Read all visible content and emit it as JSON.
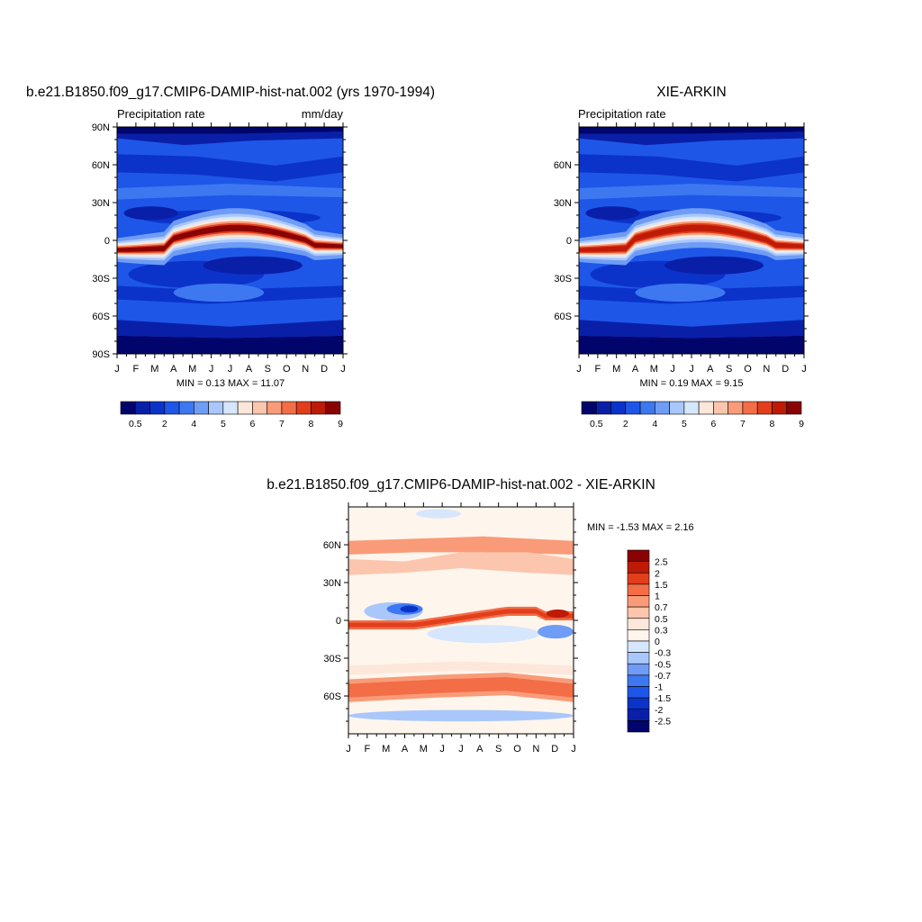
{
  "months": [
    "J",
    "F",
    "M",
    "A",
    "M",
    "J",
    "J",
    "A",
    "S",
    "O",
    "N",
    "D",
    "J"
  ],
  "colors": {
    "abs": [
      "#00046b",
      "#0a1fa8",
      "#0b33c9",
      "#1e56e8",
      "#3d78f0",
      "#6f9cf5",
      "#a9c7fb",
      "#d6e6fd",
      "#fde7da",
      "#fcc5ad",
      "#f99b78",
      "#f36d46",
      "#e23e1c",
      "#bd1a08",
      "#8a0303"
    ],
    "diff": [
      "#8a0303",
      "#bd1a08",
      "#e23e1c",
      "#f36d46",
      "#f99b78",
      "#fcc5ad",
      "#fde7da",
      "#fef5ec",
      "#d6e6fd",
      "#a9c7fb",
      "#6f9cf5",
      "#3d78f0",
      "#1e56e8",
      "#0b33c9",
      "#0a1fa8",
      "#00046b"
    ]
  },
  "chart_data": [
    {
      "type": "heatmap",
      "id": "model",
      "title": "b.e21.B1850.f09_g17.CMIP6-DAMIP-hist-nat.002 (yrs 1970-1994)",
      "left_label": "Precipitation rate",
      "right_label": "mm/day",
      "x": [
        "J",
        "F",
        "M",
        "A",
        "M",
        "J",
        "J",
        "A",
        "S",
        "O",
        "N",
        "D",
        "J"
      ],
      "y_ticks": [
        "90N",
        "60N",
        "30N",
        "0",
        "30S",
        "60S",
        "90S"
      ],
      "min_label": "MIN =   0.13 MAX =  11.07",
      "min": 0.13,
      "max": 11.07,
      "colorbar_labels": [
        "0.5",
        "2",
        "4",
        "5",
        "6",
        "7",
        "8",
        "9"
      ]
    },
    {
      "type": "heatmap",
      "id": "obs",
      "title": "XIE-ARKIN",
      "left_label": "Precipitation rate",
      "x": [
        "J",
        "F",
        "M",
        "A",
        "M",
        "J",
        "J",
        "A",
        "S",
        "O",
        "N",
        "D",
        "J"
      ],
      "y_ticks": [
        "60N",
        "30N",
        "0",
        "30S",
        "60S"
      ],
      "min_label": "MIN =   0.19 MAX =   9.15",
      "min": 0.19,
      "max": 9.15,
      "colorbar_labels": [
        "0.5",
        "2",
        "4",
        "5",
        "6",
        "7",
        "8",
        "9"
      ]
    },
    {
      "type": "heatmap",
      "id": "diff",
      "title": "b.e21.B1850.f09_g17.CMIP6-DAMIP-hist-nat.002 - XIE-ARKIN",
      "x": [
        "J",
        "F",
        "M",
        "A",
        "M",
        "J",
        "J",
        "A",
        "S",
        "O",
        "N",
        "D",
        "J"
      ],
      "y_ticks": [
        "60N",
        "30N",
        "0",
        "30S",
        "60S"
      ],
      "min_label": "MIN =  -1.53 MAX =   2.16",
      "min": -1.53,
      "max": 2.16,
      "colorbar_labels": [
        "2.5",
        "2",
        "1.5",
        "1",
        "0.7",
        "0.5",
        "0.3",
        "0",
        "-0.3",
        "-0.5",
        "-0.7",
        "-1",
        "-1.5",
        "-2",
        "-2.5"
      ]
    }
  ]
}
